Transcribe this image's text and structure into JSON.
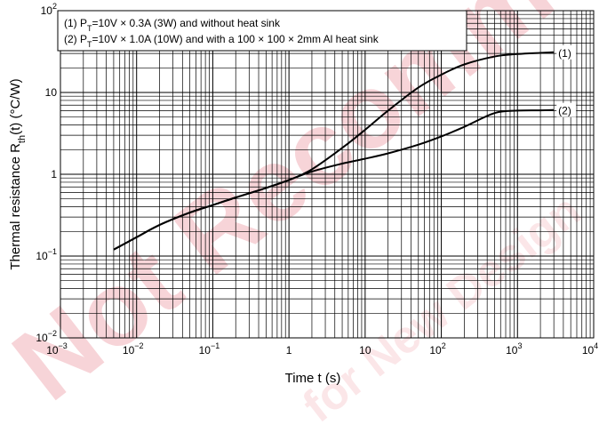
{
  "watermark": {
    "main": "Not Recommended",
    "faint": "for New Design"
  },
  "chart_data": {
    "type": "line",
    "title": "",
    "xlabel": "Time t (s)",
    "ylabel": "Thermal resistance Rth(t) (°C/W)",
    "x_scale": "log",
    "y_scale": "log",
    "xlim": [
      0.001,
      10000
    ],
    "ylim": [
      0.01,
      100
    ],
    "grid": true,
    "x_ticks": [
      {
        "value": 0.001,
        "base": "10",
        "exp": "−3"
      },
      {
        "value": 0.01,
        "base": "10",
        "exp": "−2"
      },
      {
        "value": 0.1,
        "base": "10",
        "exp": "−1"
      },
      {
        "value": 1,
        "base": "1",
        "exp": ""
      },
      {
        "value": 10,
        "base": "10",
        "exp": ""
      },
      {
        "value": 100,
        "base": "10",
        "exp": "2"
      },
      {
        "value": 1000,
        "base": "10",
        "exp": "3"
      },
      {
        "value": 10000,
        "base": "10",
        "exp": "4"
      }
    ],
    "y_ticks": [
      {
        "value": 0.01,
        "base": "10",
        "exp": "−2"
      },
      {
        "value": 0.1,
        "base": "10",
        "exp": "−1"
      },
      {
        "value": 1,
        "base": "1",
        "exp": ""
      },
      {
        "value": 10,
        "base": "10",
        "exp": ""
      },
      {
        "value": 100,
        "base": "10",
        "exp": "2"
      }
    ],
    "legend": {
      "placement": "top-left",
      "entries": [
        "(1) PT=10V × 0.3A (3W) and without heat sink",
        "(2) PT=10V × 1.0A (10W) and with a 100 × 100 × 2mm Al heat sink"
      ]
    },
    "series": [
      {
        "name": "(1)",
        "x": [
          0.005,
          0.01,
          0.02,
          0.05,
          0.1,
          0.2,
          0.5,
          1,
          2,
          5,
          10,
          20,
          50,
          100,
          200,
          500,
          1000,
          2000,
          3000
        ],
        "y": [
          0.12,
          0.17,
          0.24,
          0.34,
          0.42,
          0.52,
          0.68,
          0.85,
          1.15,
          2.1,
          3.5,
          6.0,
          11.5,
          16.5,
          22.0,
          27.5,
          29.5,
          30.5,
          31.0
        ]
      },
      {
        "name": "(2)",
        "x": [
          0.005,
          0.01,
          0.02,
          0.05,
          0.1,
          0.2,
          0.5,
          1,
          2,
          5,
          10,
          20,
          50,
          100,
          200,
          500,
          1000,
          2000,
          3000
        ],
        "y": [
          0.12,
          0.17,
          0.24,
          0.34,
          0.42,
          0.52,
          0.68,
          0.85,
          1.08,
          1.35,
          1.55,
          1.8,
          2.3,
          2.9,
          3.8,
          5.6,
          6.0,
          6.05,
          6.1
        ]
      }
    ]
  }
}
